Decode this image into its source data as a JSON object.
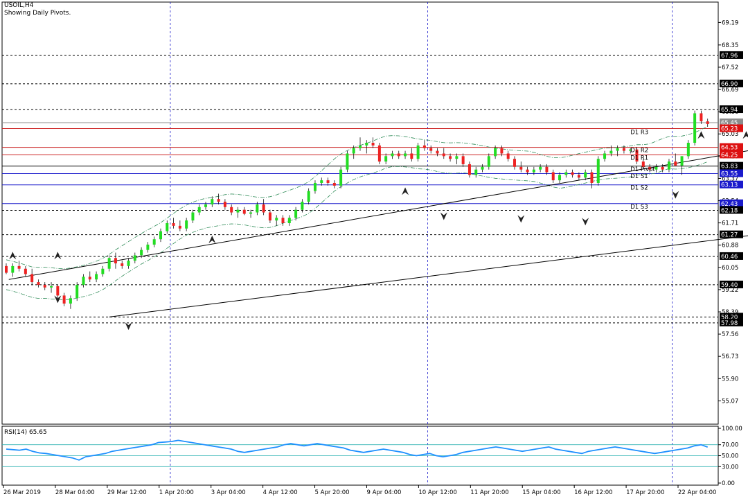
{
  "header": {
    "symbol": "USOIL,H4",
    "subtitle": "Showing Daily Pivots."
  },
  "rsi": {
    "label": "RSI(14) 65.65",
    "ticks": [
      "100.00",
      "70.00",
      "50.00",
      "30.00",
      "0.00"
    ],
    "levels": [
      70,
      50,
      30
    ]
  },
  "colors": {
    "bull": "#22dd22",
    "bear": "#ee2222",
    "pivot_line": "#1a1acc",
    "resistance_line": "#cc2222",
    "rsi_line": "#1e90ff",
    "rsi_level": "#2ab0b0",
    "channel": "#000000",
    "band": "#2e8b57"
  },
  "chart_data": {
    "type": "candlestick",
    "ylim": [
      54.2,
      69.95
    ],
    "price_ticks": [
      "69.19",
      "68.35",
      "67.52",
      "66.69",
      "65.86",
      "65.03",
      "64.20",
      "63.37",
      "62.54",
      "61.71",
      "60.88",
      "60.05",
      "59.22",
      "58.39",
      "57.56",
      "56.73",
      "55.90",
      "55.07"
    ],
    "x_labels": [
      "26 Mar 2019",
      "28 Mar 04:00",
      "29 Mar 12:00",
      "1 Apr 20:00",
      "3 Apr 04:00",
      "4 Apr 12:00",
      "5 Apr 20:00",
      "9 Apr 04:00",
      "10 Apr 12:00",
      "11 Apr 20:00",
      "15 Apr 04:00",
      "16 Apr 12:00",
      "17 Apr 20:00",
      "22 Apr 04:00"
    ],
    "day_separator_indices": [
      25,
      65,
      103,
      142,
      181,
      213
    ],
    "price_labels": [
      {
        "text": "67.96",
        "price": 67.96,
        "color": "#000000",
        "dash": "dashed",
        "line": "#000000"
      },
      {
        "text": "66.90",
        "price": 66.9,
        "color": "#000000",
        "dash": "dashed",
        "line": "#000000"
      },
      {
        "text": "65.94",
        "price": 65.94,
        "color": "#000000",
        "dash": "dashed",
        "line": "#000000"
      },
      {
        "text": "65.45",
        "price": 65.45,
        "color": "#8c8c8c",
        "dash": "solid",
        "line": "#8c8c8c"
      },
      {
        "text": "65.23",
        "price": 65.23,
        "color": "#dd1111",
        "dash": "solid",
        "line": "#cc2222"
      },
      {
        "text": "64.53",
        "price": 64.53,
        "color": "#dd1111",
        "dash": "solid",
        "line": "#cc2222"
      },
      {
        "text": "64.25",
        "price": 64.25,
        "color": "#dd1111",
        "dash": "solid",
        "line": "#cc2222"
      },
      {
        "text": "63.83",
        "price": 63.83,
        "color": "#000000",
        "dash": "solid",
        "line": "#000000"
      },
      {
        "text": "63.55",
        "price": 63.55,
        "color": "#1a1acc",
        "dash": "solid",
        "line": "#1a1acc"
      },
      {
        "text": "63.13",
        "price": 63.13,
        "color": "#1a1acc",
        "dash": "solid",
        "line": "#1a1acc"
      },
      {
        "text": "62.43",
        "price": 62.43,
        "color": "#1a1acc",
        "dash": "solid",
        "line": "#1a1acc"
      },
      {
        "text": "62.18",
        "price": 62.18,
        "color": "#000000",
        "dash": "dashed",
        "line": "#000000"
      },
      {
        "text": "61.27",
        "price": 61.27,
        "color": "#000000",
        "dash": "dashed",
        "line": "#000000"
      },
      {
        "text": "60.46",
        "price": 60.46,
        "color": "#000000",
        "dash": "dashed",
        "line": "#000000"
      },
      {
        "text": "59.40",
        "price": 59.4,
        "color": "#000000",
        "dash": "dashed",
        "line": "#000000"
      },
      {
        "text": "58.20",
        "price": 58.2,
        "color": "#000000",
        "dash": "dashed",
        "line": "#000000"
      },
      {
        "text": "57.98",
        "price": 57.98,
        "color": "#000000",
        "dash": "dashed",
        "line": "#000000"
      }
    ],
    "pivot_labels": [
      {
        "text": "D1 R3",
        "price": 65.1
      },
      {
        "text": "D1 R2",
        "price": 64.43
      },
      {
        "text": "D1 R1",
        "price": 64.15
      },
      {
        "text": "D1 Pivot",
        "price": 63.72
      },
      {
        "text": "D1 S1",
        "price": 63.46
      },
      {
        "text": "D1 S2",
        "price": 63.03
      },
      {
        "text": "D1 S3",
        "price": 62.32
      }
    ],
    "channel_upper": [
      [
        0.4,
        59.6
      ],
      [
        242,
        69.7
      ]
    ],
    "channel_lower": [
      [
        16,
        58.2
      ],
      [
        242,
        65.1
      ]
    ],
    "candles": [
      [
        60.1,
        60.2,
        59.8,
        59.85
      ],
      [
        59.85,
        60.2,
        59.7,
        60.1
      ],
      [
        60.1,
        60.3,
        59.9,
        60.0
      ],
      [
        60.0,
        60.1,
        59.7,
        59.8
      ],
      [
        59.8,
        60.0,
        59.4,
        59.5
      ],
      [
        59.5,
        59.6,
        59.3,
        59.4
      ],
      [
        59.4,
        59.5,
        59.2,
        59.3
      ],
      [
        59.3,
        59.5,
        59.1,
        59.35
      ],
      [
        59.35,
        59.4,
        58.9,
        59.0
      ],
      [
        59.0,
        59.1,
        58.6,
        58.7
      ],
      [
        58.7,
        59.0,
        58.5,
        58.9
      ],
      [
        58.9,
        59.5,
        58.8,
        59.4
      ],
      [
        59.4,
        59.8,
        59.3,
        59.7
      ],
      [
        59.7,
        59.9,
        59.5,
        59.6
      ],
      [
        59.6,
        59.9,
        59.5,
        59.8
      ],
      [
        59.8,
        60.1,
        59.7,
        60.0
      ],
      [
        60.0,
        60.5,
        59.9,
        60.4
      ],
      [
        60.4,
        60.6,
        60.0,
        60.2
      ],
      [
        60.2,
        60.3,
        60.0,
        60.1
      ],
      [
        60.1,
        60.4,
        60.0,
        60.3
      ],
      [
        60.3,
        60.6,
        60.2,
        60.5
      ],
      [
        60.5,
        60.8,
        60.4,
        60.7
      ],
      [
        60.7,
        61.0,
        60.6,
        60.9
      ],
      [
        60.9,
        61.2,
        60.8,
        61.1
      ],
      [
        61.1,
        61.5,
        61.0,
        61.4
      ],
      [
        61.4,
        61.8,
        61.3,
        61.7
      ],
      [
        61.7,
        61.9,
        61.5,
        61.6
      ],
      [
        61.6,
        61.8,
        61.4,
        61.5
      ],
      [
        61.5,
        61.9,
        61.4,
        61.8
      ],
      [
        61.8,
        62.2,
        61.7,
        62.1
      ],
      [
        62.1,
        62.4,
        62.0,
        62.3
      ],
      [
        62.3,
        62.5,
        62.2,
        62.4
      ],
      [
        62.4,
        62.7,
        62.3,
        62.6
      ],
      [
        62.6,
        62.8,
        62.4,
        62.5
      ],
      [
        62.5,
        62.6,
        62.2,
        62.3
      ],
      [
        62.3,
        62.4,
        62.0,
        62.1
      ],
      [
        62.1,
        62.3,
        61.9,
        62.2
      ],
      [
        62.2,
        62.3,
        62.0,
        62.05
      ],
      [
        62.05,
        62.2,
        61.9,
        62.1
      ],
      [
        62.1,
        62.5,
        62.0,
        62.4
      ],
      [
        62.4,
        62.6,
        62.0,
        62.1
      ],
      [
        62.1,
        62.2,
        61.7,
        61.8
      ],
      [
        61.8,
        62.0,
        61.6,
        61.9
      ],
      [
        61.9,
        62.0,
        61.6,
        61.7
      ],
      [
        61.7,
        62.0,
        61.6,
        61.9
      ],
      [
        61.9,
        62.3,
        61.8,
        62.2
      ],
      [
        62.2,
        62.6,
        62.1,
        62.5
      ],
      [
        62.5,
        63.0,
        62.4,
        62.9
      ],
      [
        62.9,
        63.3,
        62.8,
        63.2
      ],
      [
        63.2,
        63.4,
        63.1,
        63.3
      ],
      [
        63.3,
        63.4,
        63.1,
        63.2
      ],
      [
        63.2,
        63.3,
        63.0,
        63.1
      ],
      [
        63.1,
        63.8,
        63.0,
        63.7
      ],
      [
        63.7,
        64.4,
        63.6,
        64.3
      ],
      [
        64.3,
        64.6,
        64.1,
        64.5
      ],
      [
        64.5,
        64.9,
        64.4,
        64.6
      ],
      [
        64.6,
        64.8,
        64.3,
        64.7
      ],
      [
        64.7,
        64.9,
        64.5,
        64.6
      ],
      [
        64.6,
        64.7,
        63.9,
        64.0
      ],
      [
        64.0,
        64.3,
        63.9,
        64.2
      ],
      [
        64.2,
        64.4,
        64.1,
        64.3
      ],
      [
        64.3,
        64.4,
        64.1,
        64.2
      ],
      [
        64.2,
        64.4,
        64.1,
        64.3
      ],
      [
        64.3,
        64.5,
        64.0,
        64.1
      ],
      [
        64.1,
        64.7,
        64.0,
        64.6
      ],
      [
        64.6,
        64.8,
        64.4,
        64.5
      ],
      [
        64.5,
        64.6,
        64.3,
        64.4
      ],
      [
        64.4,
        64.5,
        64.2,
        64.3
      ],
      [
        64.3,
        64.5,
        64.1,
        64.2
      ],
      [
        64.2,
        64.3,
        64.0,
        64.1
      ],
      [
        64.1,
        64.3,
        63.9,
        64.2
      ],
      [
        64.2,
        64.3,
        63.8,
        63.9
      ],
      [
        63.9,
        64.0,
        63.4,
        63.5
      ],
      [
        63.5,
        63.8,
        63.4,
        63.7
      ],
      [
        63.7,
        63.9,
        63.6,
        63.8
      ],
      [
        63.8,
        64.3,
        63.7,
        64.2
      ],
      [
        64.2,
        64.6,
        64.1,
        64.5
      ],
      [
        64.5,
        64.6,
        64.2,
        64.3
      ],
      [
        64.3,
        64.4,
        64.0,
        64.1
      ],
      [
        64.1,
        64.2,
        63.7,
        63.8
      ],
      [
        63.8,
        64.0,
        63.6,
        63.7
      ],
      [
        63.7,
        63.8,
        63.5,
        63.6
      ],
      [
        63.6,
        63.8,
        63.5,
        63.7
      ],
      [
        63.7,
        63.9,
        63.6,
        63.8
      ],
      [
        63.8,
        63.9,
        63.5,
        63.6
      ],
      [
        63.6,
        63.7,
        63.2,
        63.3
      ],
      [
        63.3,
        63.6,
        63.2,
        63.5
      ],
      [
        63.5,
        63.7,
        63.4,
        63.6
      ],
      [
        63.6,
        63.7,
        63.4,
        63.5
      ],
      [
        63.5,
        63.6,
        63.3,
        63.4
      ],
      [
        63.4,
        63.7,
        63.3,
        63.6
      ],
      [
        63.6,
        63.7,
        63.0,
        63.2
      ],
      [
        63.2,
        64.2,
        63.1,
        64.1
      ],
      [
        64.1,
        64.4,
        64.0,
        64.3
      ],
      [
        64.3,
        64.6,
        64.2,
        64.4
      ],
      [
        64.4,
        64.6,
        64.2,
        64.5
      ],
      [
        64.5,
        64.6,
        64.3,
        64.4
      ],
      [
        64.4,
        64.5,
        64.3,
        64.45
      ],
      [
        64.45,
        64.5,
        63.9,
        64.0
      ],
      [
        64.0,
        64.1,
        63.7,
        63.8
      ],
      [
        63.8,
        63.9,
        63.6,
        63.7
      ],
      [
        63.7,
        63.9,
        63.6,
        63.8
      ],
      [
        63.8,
        63.9,
        63.6,
        63.7
      ],
      [
        63.7,
        64.1,
        63.6,
        64.0
      ],
      [
        64.0,
        64.3,
        63.9,
        63.85
      ],
      [
        63.85,
        64.2,
        63.5,
        64.2
      ],
      [
        64.2,
        64.8,
        64.1,
        64.7
      ],
      [
        64.7,
        65.9,
        64.6,
        65.8
      ],
      [
        65.8,
        65.9,
        65.4,
        65.5
      ],
      [
        65.5,
        65.6,
        65.3,
        65.4
      ]
    ],
    "swing_highs": [
      [
        1,
        60.35
      ],
      [
        8,
        60.35
      ],
      [
        32,
        60.95
      ],
      [
        62,
        62.75
      ],
      [
        108,
        64.85
      ],
      [
        115,
        64.85
      ],
      [
        128,
        64.8
      ],
      [
        150,
        64.75
      ],
      [
        182,
        64.75
      ],
      [
        205,
        65.95
      ]
    ],
    "swing_lows": [
      [
        8,
        59.0
      ],
      [
        19,
        58.0
      ],
      [
        68,
        62.1
      ],
      [
        80,
        62.0
      ],
      [
        90,
        61.9
      ],
      [
        104,
        62.9
      ],
      [
        118,
        63.4
      ],
      [
        130,
        63.6
      ],
      [
        142,
        63.2
      ],
      [
        165,
        63.0
      ],
      [
        177,
        62.95
      ],
      [
        196,
        63.15
      ]
    ],
    "rsi_values": [
      62,
      61,
      60,
      62,
      58,
      55,
      54,
      52,
      50,
      48,
      46,
      42,
      48,
      50,
      52,
      54,
      58,
      60,
      62,
      64,
      66,
      68,
      70,
      74,
      75,
      76,
      78,
      76,
      74,
      72,
      70,
      68,
      66,
      64,
      62,
      58,
      56,
      58,
      60,
      62,
      64,
      66,
      70,
      72,
      70,
      68,
      70,
      72,
      70,
      68,
      66,
      64,
      60,
      58,
      56,
      58,
      60,
      62,
      60,
      58,
      56,
      52,
      50,
      52,
      54,
      50,
      48,
      50,
      52,
      56,
      58,
      60,
      62,
      64,
      66,
      64,
      62,
      60,
      58,
      60,
      62,
      64,
      66,
      62,
      60,
      58,
      56,
      54,
      58,
      60,
      62,
      64,
      66,
      64,
      62,
      60,
      58,
      56,
      54,
      56,
      58,
      60,
      62,
      64,
      68,
      70,
      65.65
    ]
  }
}
